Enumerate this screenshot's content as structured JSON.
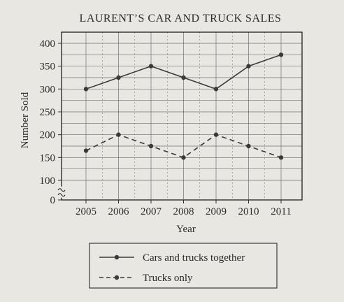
{
  "chart_data": {
    "type": "line",
    "title": "LAURENT’S CAR AND TRUCK SALES",
    "xlabel": "Year",
    "ylabel": "Number Sold",
    "categories": [
      "2005",
      "2006",
      "2007",
      "2008",
      "2009",
      "2010",
      "2011"
    ],
    "yticks": [
      "0",
      "100",
      "150",
      "200",
      "250",
      "300",
      "350",
      "400"
    ],
    "ylim": [
      0,
      410
    ],
    "axis_break": "between 0 and 100",
    "grid": true,
    "legend_position": "bottom",
    "series": [
      {
        "name": "Cars and trucks together",
        "style": "solid",
        "values": [
          300,
          325,
          350,
          325,
          300,
          350,
          375
        ]
      },
      {
        "name": "Trucks only",
        "style": "dashed",
        "values": [
          165,
          200,
          175,
          150,
          200,
          175,
          150
        ]
      }
    ],
    "colors": {
      "line": "#3a3a3a",
      "grid": "#6f6f6f",
      "frame": "#2e2e2e",
      "legend_border": "#3a3a3a"
    }
  }
}
